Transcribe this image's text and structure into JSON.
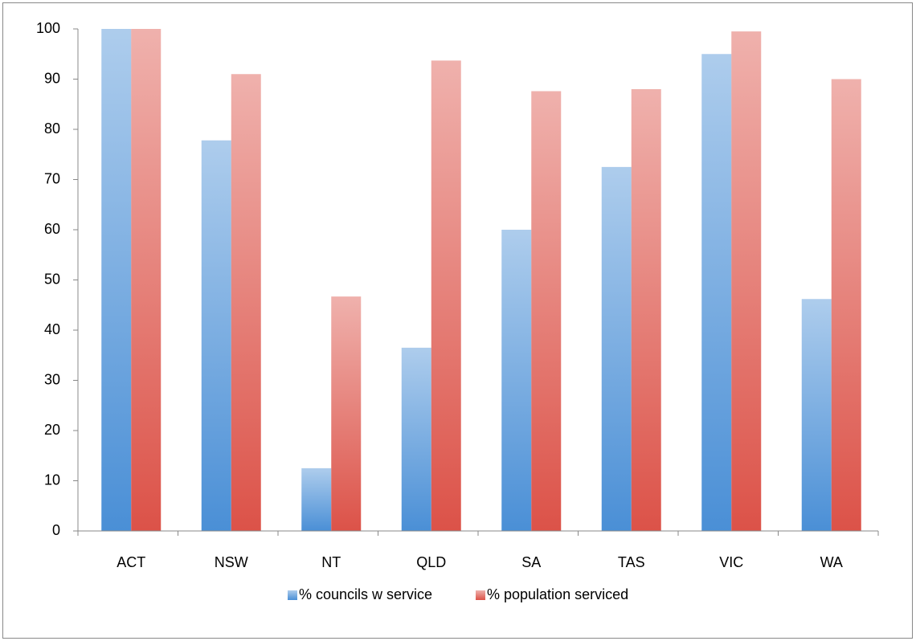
{
  "chart_data": {
    "type": "bar",
    "categories": [
      "ACT",
      "NSW",
      "NT",
      "QLD",
      "SA",
      "TAS",
      "VIC",
      "WA"
    ],
    "series": [
      {
        "name": "% councils w service",
        "color": "#4a8fd6",
        "values": [
          100,
          77.8,
          12.5,
          36.5,
          60,
          72.5,
          95,
          46.2
        ]
      },
      {
        "name": "% population serviced",
        "color": "#dc5248",
        "values": [
          100,
          91,
          46.7,
          93.7,
          87.6,
          88,
          99.5,
          90
        ]
      }
    ],
    "ylim": [
      0,
      100
    ],
    "yticks": [
      0,
      10,
      20,
      30,
      40,
      50,
      60,
      70,
      80,
      90,
      100
    ],
    "grid": false,
    "legend": "bottom"
  }
}
